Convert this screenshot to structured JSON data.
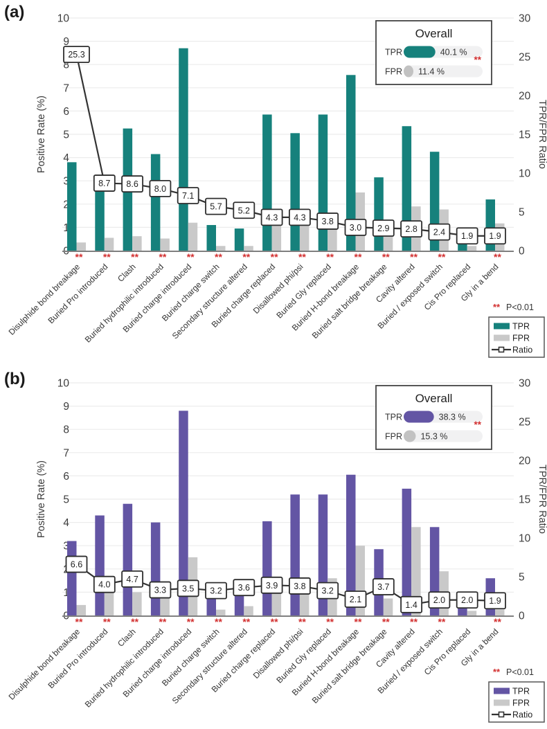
{
  "figure": {
    "significance_note_stars": "**",
    "significance_note_text": "P<0.01",
    "colors": {
      "tpr_a": "#16817c",
      "tpr_b": "#6355a4",
      "fpr": "#c9c9c9",
      "fpr_pill": "#c2c2c2",
      "ratio_line": "#333333",
      "significance_red": "#d22f2f",
      "gridline": "#ececec",
      "baseline": "#7f7f7f",
      "tick_text": "#3d3d3d",
      "pill_track": "#f1f1f2"
    }
  },
  "chart_data": [
    {
      "type": "bar+line",
      "panel_label": "(a)",
      "ylabel_left": "Positive Rate (%)",
      "ylabel_right": "TPR/FPR Ratio",
      "ylim_left": [
        0,
        10
      ],
      "ylim_right": [
        0,
        30
      ],
      "yticks_left": [
        0,
        1,
        2,
        3,
        4,
        5,
        6,
        7,
        8,
        9,
        10
      ],
      "yticks_right": [
        0,
        5,
        10,
        15,
        20,
        25,
        30
      ],
      "grid": true,
      "legend_position": "bottom-right",
      "categories": [
        "Disulphide bond breakage",
        "Buried Pro introduced",
        "Clash",
        "Buried hydrophilic introduced",
        "Buried charge introduced",
        "Buried charge switch",
        "Secondary structure altered",
        "Buried charge replaced",
        "Disallowed phi/psi",
        "Buried Gly replaced",
        "Buried H-bond breakage",
        "Buried salt bridge breakage",
        "Cavity altered",
        "Buried / exposed switch",
        "Cis Pro replaced",
        "Gly in a bend"
      ],
      "series": [
        {
          "name": "TPR",
          "type": "bar",
          "axis": "left",
          "values": [
            3.8,
            3.2,
            5.25,
            4.15,
            8.7,
            1.1,
            0.95,
            5.85,
            5.05,
            5.85,
            7.55,
            3.15,
            5.35,
            4.25,
            0.4,
            2.2
          ]
        },
        {
          "name": "FPR",
          "type": "bar",
          "axis": "left",
          "values": [
            0.35,
            0.55,
            0.62,
            0.52,
            1.2,
            0.2,
            0.2,
            1.37,
            1.17,
            1.55,
            2.5,
            1.07,
            1.9,
            1.77,
            0.2,
            1.17
          ]
        },
        {
          "name": "Ratio",
          "type": "line",
          "axis": "right",
          "values": [
            25.3,
            8.7,
            8.6,
            8.0,
            7.1,
            5.7,
            5.2,
            4.3,
            4.3,
            3.8,
            3.0,
            2.9,
            2.8,
            2.4,
            1.9,
            1.9
          ]
        }
      ],
      "ratio_labels": [
        "25.3",
        "8.7",
        "8.6",
        "8.0",
        "7.1",
        "5.7",
        "5.2",
        "4.3",
        "4.3",
        "3.8",
        "3.0",
        "2.9",
        "2.8",
        "2.4",
        "1.9",
        "1.9"
      ],
      "significant": [
        true,
        true,
        true,
        true,
        true,
        true,
        true,
        true,
        true,
        true,
        true,
        true,
        true,
        true,
        false,
        true
      ],
      "overall": {
        "title": "Overall",
        "tpr_label": "TPR",
        "tpr_text": "40.1 %",
        "tpr_pct": 40.1,
        "fpr_label": "FPR",
        "fpr_text": "11.4 %",
        "fpr_pct": 11.4,
        "stars": "**"
      },
      "legend_entries": [
        "TPR",
        "FPR",
        "Ratio"
      ]
    },
    {
      "type": "bar+line",
      "panel_label": "(b)",
      "ylabel_left": "Positive Rate (%)",
      "ylabel_right": "TPR/FPR Ratio",
      "ylim_left": [
        0,
        10
      ],
      "ylim_right": [
        0,
        30
      ],
      "yticks_left": [
        0,
        1,
        2,
        3,
        4,
        5,
        6,
        7,
        8,
        9,
        10
      ],
      "yticks_right": [
        0,
        5,
        10,
        15,
        20,
        25,
        30
      ],
      "grid": true,
      "legend_position": "bottom-right",
      "categories": [
        "Disulphide bond breakage",
        "Buried Pro introduced",
        "Clash",
        "Buried hydrophilic introduced",
        "Buried charge introduced",
        "Buried charge switch",
        "Secondary structure altered",
        "Buried charge replaced",
        "Disallowed phi/psi",
        "Buried Gly replaced",
        "Buried H-bond breakage",
        "Buried salt bridge breakage",
        "Cavity altered",
        "Buried / exposed switch",
        "Cis Pro replaced",
        "Gly in a bend"
      ],
      "series": [
        {
          "name": "TPR",
          "type": "bar",
          "axis": "left",
          "values": [
            3.2,
            4.3,
            4.8,
            4.0,
            8.8,
            0.95,
            1.0,
            4.05,
            5.2,
            5.2,
            6.05,
            2.85,
            5.45,
            3.8,
            0.4,
            1.6
          ]
        },
        {
          "name": "FPR",
          "type": "bar",
          "axis": "left",
          "values": [
            0.45,
            1.05,
            1.0,
            1.2,
            2.5,
            0.25,
            0.4,
            1.0,
            1.4,
            1.6,
            3.0,
            0.73,
            3.8,
            1.9,
            0.2,
            0.25
          ]
        },
        {
          "name": "Ratio",
          "type": "line",
          "axis": "right",
          "values": [
            6.6,
            4.0,
            4.7,
            3.3,
            3.5,
            3.2,
            3.6,
            3.9,
            3.8,
            3.2,
            2.1,
            3.7,
            1.4,
            2.0,
            2.0,
            1.9
          ]
        }
      ],
      "ratio_labels": [
        "6.6",
        "4.0",
        "4.7",
        "3.3",
        "3.5",
        "3.2",
        "3.6",
        "3.9",
        "3.8",
        "3.2",
        "2.1",
        "3.7",
        "1.4",
        "2.0",
        "2.0",
        "1.9"
      ],
      "significant": [
        true,
        true,
        true,
        true,
        true,
        true,
        true,
        true,
        true,
        true,
        true,
        true,
        true,
        true,
        false,
        true
      ],
      "overall": {
        "title": "Overall",
        "tpr_label": "TPR",
        "tpr_text": "38.3 %",
        "tpr_pct": 38.3,
        "fpr_label": "FPR",
        "fpr_text": "15.3 %",
        "fpr_pct": 15.3,
        "stars": "**"
      },
      "legend_entries": [
        "TPR",
        "FPR",
        "Ratio"
      ]
    }
  ]
}
